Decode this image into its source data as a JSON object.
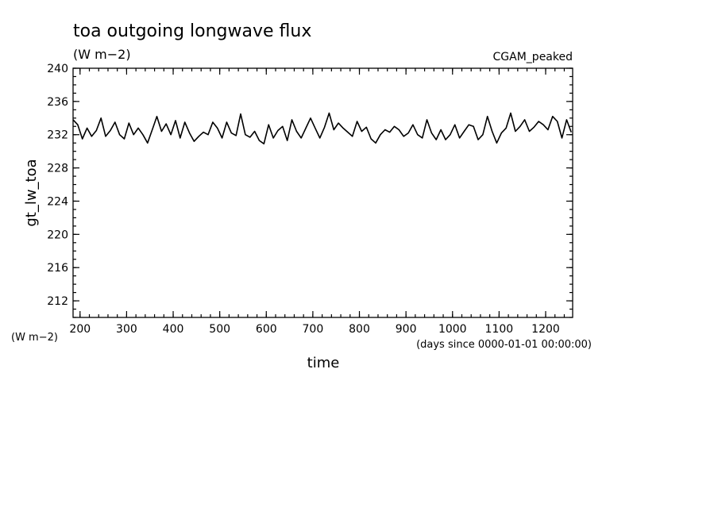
{
  "chart_data": {
    "type": "line",
    "title": "toa outgoing longwave flux",
    "title_units": "(W m−2)",
    "dataset_label": "CGAM_peaked",
    "ylabel": "gt_lw_toa",
    "ylabel_units": "(W m−2)",
    "xlabel": "time",
    "xlabel_units": "(days since 0000-01-01 00:00:00)",
    "xlim": [
      185,
      1258
    ],
    "ylim": [
      210,
      240
    ],
    "xticks": [
      200,
      300,
      400,
      500,
      600,
      700,
      800,
      900,
      1000,
      1100,
      1200
    ],
    "xtick_labels": [
      "200",
      "300",
      "400",
      "500",
      "600",
      "700",
      "800",
      "900",
      "1000",
      "1100",
      "1200"
    ],
    "yticks": [
      212,
      216,
      220,
      224,
      228,
      232,
      236,
      240
    ],
    "ytick_labels": [
      "212",
      "216",
      "220",
      "224",
      "228",
      "232",
      "236",
      "240"
    ],
    "x_minor_step": 20,
    "y_minor_step": 1,
    "grid": false,
    "series": [
      {
        "color": "#000000",
        "x": [
          185,
          195,
          205,
          215,
          225,
          235,
          245,
          255,
          265,
          275,
          285,
          295,
          305,
          315,
          325,
          335,
          345,
          355,
          365,
          375,
          385,
          395,
          405,
          415,
          425,
          435,
          445,
          455,
          465,
          475,
          485,
          495,
          505,
          515,
          525,
          535,
          545,
          555,
          565,
          575,
          585,
          595,
          605,
          615,
          625,
          635,
          645,
          655,
          665,
          675,
          685,
          695,
          705,
          715,
          725,
          735,
          745,
          755,
          765,
          775,
          785,
          795,
          805,
          815,
          825,
          835,
          845,
          855,
          865,
          875,
          885,
          895,
          905,
          915,
          925,
          935,
          945,
          955,
          965,
          975,
          985,
          995,
          1005,
          1015,
          1025,
          1035,
          1045,
          1055,
          1065,
          1075,
          1085,
          1095,
          1105,
          1115,
          1125,
          1135,
          1145,
          1155,
          1165,
          1175,
          1185,
          1195,
          1205,
          1215,
          1225,
          1235,
          1245,
          1255
        ],
        "values": [
          233.8,
          233.2,
          231.5,
          232.8,
          231.8,
          232.5,
          234.0,
          231.8,
          232.5,
          233.5,
          232.0,
          231.5,
          233.4,
          232.0,
          232.8,
          232.0,
          231.0,
          232.6,
          234.2,
          232.4,
          233.3,
          232.0,
          233.7,
          231.6,
          233.5,
          232.2,
          231.2,
          231.8,
          232.3,
          232.0,
          233.5,
          232.8,
          231.6,
          233.5,
          232.2,
          231.9,
          234.5,
          232.0,
          231.7,
          232.4,
          231.3,
          230.9,
          233.2,
          231.6,
          232.5,
          233.0,
          231.3,
          233.8,
          232.4,
          231.6,
          232.8,
          234.0,
          232.8,
          231.6,
          232.9,
          234.6,
          232.6,
          233.4,
          232.8,
          232.3,
          231.8,
          233.6,
          232.4,
          232.9,
          231.5,
          231.0,
          232.0,
          232.6,
          232.3,
          233.0,
          232.6,
          231.8,
          232.2,
          233.2,
          232.0,
          231.6,
          233.8,
          232.2,
          231.4,
          232.6,
          231.4,
          232.0,
          233.2,
          231.6,
          232.4,
          233.2,
          233.0,
          231.4,
          232.0,
          234.2,
          232.4,
          231.0,
          232.2,
          232.8,
          234.6,
          232.4,
          233.0,
          233.8,
          232.4,
          232.9,
          233.6,
          233.2,
          232.6,
          234.2,
          233.6,
          231.6,
          233.8,
          232.3
        ]
      }
    ]
  }
}
